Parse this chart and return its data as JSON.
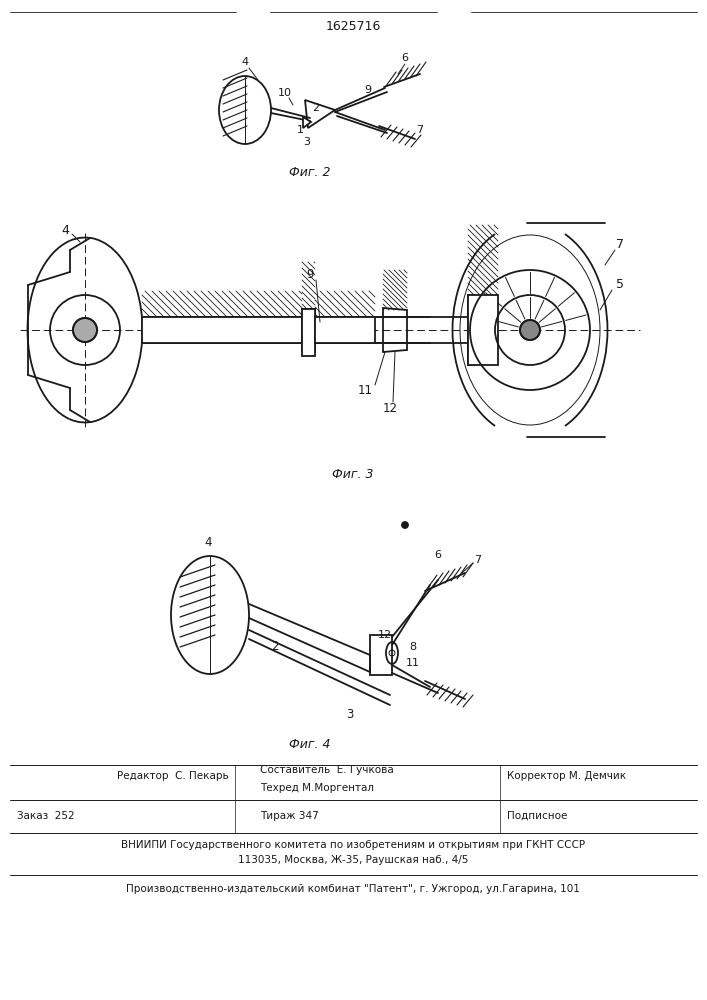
{
  "patent_number": "1625716",
  "background_color": "#ffffff",
  "line_color": "#1a1a1a",
  "fig2_label": "Фиг. 2",
  "fig3_label": "Фиг. 3",
  "fig4_label": "Фиг. 4",
  "footer_line1_col1": "Редактор  С. Пекарь",
  "footer_line1_col2_top": "Составитель  Е. Гучкова",
  "footer_line1_col2_bot": "Техред М.Моргентал",
  "footer_line1_col3": "Корректор М. Демчик",
  "footer_line2_col1": "Заказ  252",
  "footer_line2_col2": "Тираж 347",
  "footer_line2_col3": "Подписное",
  "footer_line3": "ВНИИПИ Государственного комитета по изобретениям и открытиям при ГКНТ СССР",
  "footer_line4": "113035, Москва, Ж-35, Раушская наб., 4/5",
  "footer_line5": "Производственно-издательский комбинат \"Патент\", г. Ужгород, ул.Гагарина, 101"
}
